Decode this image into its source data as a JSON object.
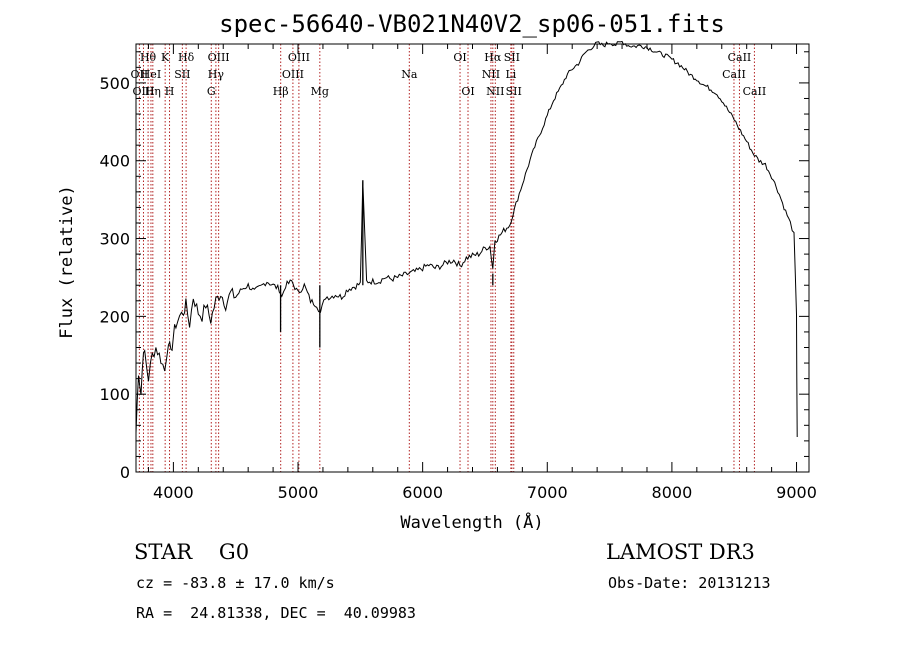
{
  "chart_data": {
    "type": "line",
    "title": "spec-56640-VB021N40V2_sp06-051.fits",
    "xlabel": "Wavelength (Å)",
    "ylabel": "Flux (relative)",
    "xlim": [
      3700,
      9100
    ],
    "ylim": [
      0,
      550
    ],
    "xticks": [
      4000,
      5000,
      6000,
      7000,
      8000,
      9000
    ],
    "yticks": [
      0,
      100,
      200,
      300,
      400,
      500
    ],
    "grid": false,
    "series": [
      {
        "name": "flux",
        "x": [
          3700,
          3720,
          3740,
          3760,
          3780,
          3800,
          3830,
          3860,
          3900,
          3930,
          3960,
          3980,
          4000,
          4020,
          4050,
          4080,
          4100,
          4130,
          4160,
          4200,
          4230,
          4260,
          4300,
          4340,
          4380,
          4420,
          4460,
          4500,
          4550,
          4600,
          4650,
          4700,
          4750,
          4800,
          4850,
          4870,
          4900,
          4950,
          5000,
          5050,
          5100,
          5150,
          5180,
          5220,
          5260,
          5300,
          5350,
          5400,
          5450,
          5500,
          5520,
          5550,
          5600,
          5650,
          5700,
          5750,
          5800,
          5850,
          5890,
          5950,
          6000,
          6050,
          6100,
          6150,
          6200,
          6250,
          6300,
          6350,
          6400,
          6450,
          6500,
          6540,
          6563,
          6580,
          6600,
          6650,
          6700,
          6750,
          6800,
          6850,
          6900,
          6950,
          7000,
          7050,
          7100,
          7150,
          7200,
          7250,
          7300,
          7350,
          7400,
          7450,
          7500,
          7550,
          7600,
          7650,
          7700,
          7750,
          7800,
          7850,
          7900,
          7950,
          8000,
          8050,
          8100,
          8150,
          8200,
          8250,
          8300,
          8350,
          8400,
          8450,
          8500,
          8550,
          8600,
          8650,
          8700,
          8750,
          8800,
          8850,
          8900,
          8950,
          8980,
          9000,
          9005
        ],
        "y": [
          50,
          130,
          100,
          160,
          140,
          120,
          150,
          160,
          145,
          130,
          170,
          150,
          175,
          190,
          200,
          205,
          215,
          190,
          225,
          205,
          200,
          215,
          195,
          220,
          230,
          215,
          230,
          225,
          235,
          240,
          232,
          238,
          245,
          240,
          235,
          225,
          240,
          245,
          230,
          240,
          220,
          215,
          205,
          225,
          225,
          228,
          225,
          235,
          238,
          242,
          370,
          245,
          245,
          245,
          250,
          248,
          250,
          253,
          255,
          258,
          262,
          266,
          262,
          265,
          270,
          272,
          265,
          275,
          278,
          280,
          288,
          290,
          262,
          298,
          300,
          310,
          318,
          345,
          370,
          395,
          418,
          438,
          458,
          478,
          492,
          508,
          518,
          525,
          538,
          545,
          551,
          548,
          552,
          549,
          553,
          548,
          547,
          548,
          546,
          542,
          538,
          535,
          530,
          525,
          518,
          510,
          505,
          498,
          493,
          488,
          478,
          465,
          453,
          438,
          425,
          410,
          400,
          395,
          380,
          362,
          340,
          320,
          305,
          200,
          45
        ],
        "spikes": [
          {
            "x": 4860,
            "y": 180
          },
          {
            "x": 5175,
            "y": 160
          },
          {
            "x": 5520,
            "y": 375
          },
          {
            "x": 6563,
            "y": 255
          }
        ]
      }
    ],
    "lines": [
      {
        "label": "Hθ",
        "x": 3797,
        "row": 0
      },
      {
        "label": "OII",
        "x": 3727,
        "row": 1
      },
      {
        "label": "OIII",
        "x": 3760,
        "row": 2
      },
      {
        "label": "HeI",
        "x": 3820,
        "row": 1
      },
      {
        "label": "Hη",
        "x": 3835,
        "row": 2
      },
      {
        "label": "K",
        "x": 3934,
        "row": 0
      },
      {
        "label": "SII",
        "x": 4072,
        "row": 1
      },
      {
        "label": "H",
        "x": 3969,
        "row": 2
      },
      {
        "label": "Hδ",
        "x": 4102,
        "row": 0
      },
      {
        "label": "OIII",
        "x": 4363,
        "row": 0
      },
      {
        "label": "Hγ",
        "x": 4341,
        "row": 1
      },
      {
        "label": "G",
        "x": 4304,
        "row": 2
      },
      {
        "label": "OIII",
        "x": 5007,
        "row": 0
      },
      {
        "label": "OIII",
        "x": 4959,
        "row": 1
      },
      {
        "label": "Hβ",
        "x": 4861,
        "row": 2
      },
      {
        "label": "Mg",
        "x": 5175,
        "row": 2
      },
      {
        "label": "Na",
        "x": 5893,
        "row": 1
      },
      {
        "label": "OI",
        "x": 6300,
        "row": 0
      },
      {
        "label": "OI",
        "x": 6364,
        "row": 2
      },
      {
        "label": "Hα",
        "x": 6563,
        "row": 0
      },
      {
        "label": "SII",
        "x": 6716,
        "row": 0
      },
      {
        "label": "NII",
        "x": 6548,
        "row": 1
      },
      {
        "label": "Li",
        "x": 6708,
        "row": 1
      },
      {
        "label": "NII",
        "x": 6583,
        "row": 2
      },
      {
        "label": "SII",
        "x": 6731,
        "row": 2
      },
      {
        "label": "CaII",
        "x": 8542,
        "row": 0
      },
      {
        "label": "CaII",
        "x": 8498,
        "row": 1
      },
      {
        "label": "CaII",
        "x": 8662,
        "row": 2
      }
    ]
  },
  "info": {
    "object": "STAR    G0",
    "survey": "LAMOST DR3",
    "cz": "cz = -83.8 ± 17.0 km/s",
    "obs_date": "Obs-Date: 20131213",
    "coords": "RA =  24.81338, DEC =  40.09983"
  },
  "colors": {
    "axis": "#000000",
    "spectrum": "#000000",
    "line_markers": "#b22222"
  }
}
